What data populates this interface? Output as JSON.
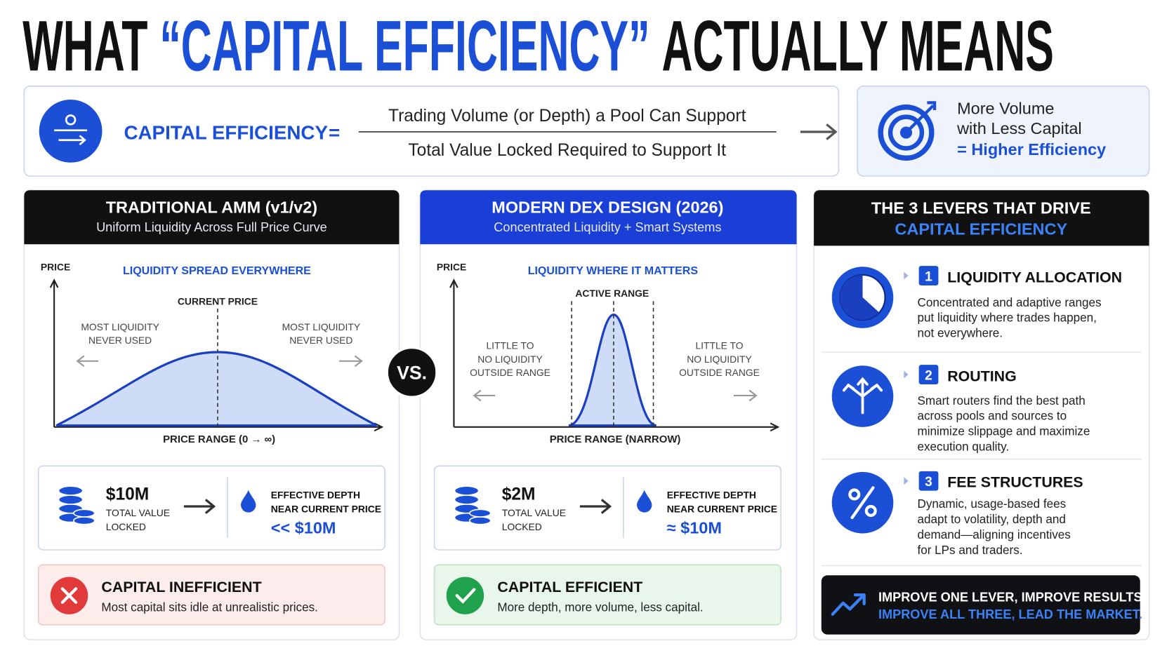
{
  "header": {
    "title_parts": [
      "WHAT",
      "“CAPITAL EFFICIENCY”",
      "ACTUALLY MEANS"
    ]
  },
  "formula": {
    "label": "CAPITAL EFFICIENCY",
    "operator": "=",
    "numerator": "Trading Volume (or Depth) a Pool Can Support",
    "denominator": "Total Value Locked Required to Support It",
    "result_lines": [
      "More Volume",
      "with Less Capital",
      "= Higher Efficiency"
    ]
  },
  "panels": [
    {
      "title": "TRADITIONAL AMM (v1/v2)",
      "subtitle": "Uniform Liquidity Across Full Price Curve",
      "chart": {
        "y_label": "PRICE",
        "headline": "LIQUIDITY SPREAD EVERYWHERE",
        "marker_label": "CURRENT PRICE",
        "left_note": [
          "MOST LIQUIDITY",
          "NEVER USED"
        ],
        "right_note": [
          "MOST LIQUIDITY",
          "NEVER USED"
        ],
        "x_label": "PRICE RANGE (0 → ∞)"
      },
      "stats": {
        "tvl": "$10M",
        "tvl_label": [
          "TOTAL VALUE",
          "LOCKED"
        ],
        "depth_label": [
          "EFFECTIVE DEPTH",
          "NEAR CURRENT PRICE"
        ],
        "depth": "<< $10M"
      },
      "verdict": {
        "title": "CAPITAL INEFFICIENT",
        "text": "Most capital sits idle at unrealistic prices."
      }
    },
    {
      "title": "MODERN DEX DESIGN (2026)",
      "subtitle": "Concentrated Liquidity + Smart Systems",
      "chart": {
        "y_label": "PRICE",
        "headline": "LIQUIDITY WHERE IT MATTERS",
        "marker_label": "ACTIVE RANGE",
        "left_note": [
          "LITTLE TO",
          "NO LIQUIDITY",
          "OUTSIDE RANGE"
        ],
        "right_note": [
          "LITTLE TO",
          "NO LIQUIDITY",
          "OUTSIDE RANGE"
        ],
        "x_label": "PRICE RANGE (NARROW)"
      },
      "stats": {
        "tvl": "$2M",
        "tvl_label": [
          "TOTAL VALUE",
          "LOCKED"
        ],
        "depth_label": [
          "EFFECTIVE DEPTH",
          "NEAR CURRENT PRICE"
        ],
        "depth": "≈ $10M"
      },
      "verdict": {
        "title": "CAPITAL EFFICIENT",
        "text": "More depth, more volume, less capital."
      }
    }
  ],
  "vs": "VS.",
  "levers": {
    "title": "THE 3 LEVERS THAT DRIVE",
    "title_highlight": "CAPITAL EFFICIENCY",
    "items": [
      {
        "number": "1",
        "title": "LIQUIDITY ALLOCATION",
        "lines": [
          "Concentrated and adaptive ranges",
          "put liquidity where trades happen,",
          "not everywhere."
        ]
      },
      {
        "number": "2",
        "title": "ROUTING",
        "lines": [
          "Smart routers find the best path",
          "across pools and sources to",
          "minimize slippage and maximize",
          "execution quality."
        ]
      },
      {
        "number": "3",
        "title": "FEE STRUCTURES",
        "lines": [
          "Dynamic, usage-based fees",
          "adapt to volatility, depth and",
          "demand—aligning incentives",
          "for LPs and traders."
        ]
      }
    ],
    "footer": [
      "IMPROVE ONE LEVER, IMPROVE RESULTS.",
      "IMPROVE ALL THREE, LEAD THE MARKET."
    ]
  }
}
